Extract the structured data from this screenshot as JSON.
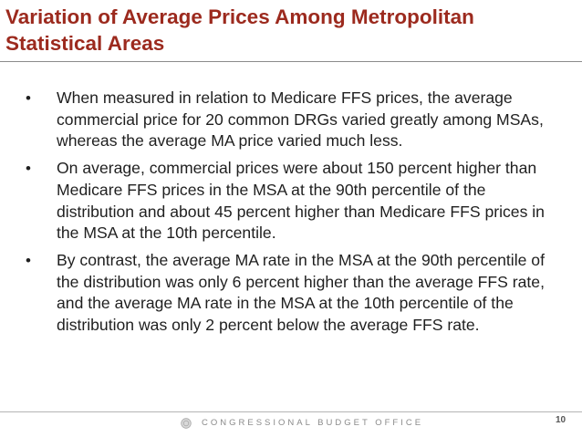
{
  "slide": {
    "title": "Variation of Average Prices Among Metropolitan Statistical Areas",
    "title_color": "#9c2a1e",
    "bullets": [
      "When measured in relation to Medicare FFS prices, the average commercial price for 20 common DRGs varied greatly among MSAs, whereas the average MA price varied much less.",
      "On average, commercial prices were about 150 percent higher than Medicare FFS prices in the MSA at the 90th percentile of the distribution and about 45 percent higher than Medicare FFS prices in the MSA at the 10th percentile.",
      "By contrast, the average MA rate in the MSA at the 90th percentile of the distribution was only 6 percent higher than the average FFS rate, and the average MA rate in the MSA at the 10th percentile of the distribution was only 2 percent below the average FFS rate."
    ],
    "bullet_glyph": "•"
  },
  "footer": {
    "organization": "CONGRESSIONAL BUDGET OFFICE",
    "logo_icon": "cbo-seal-icon",
    "page_number": "10"
  }
}
